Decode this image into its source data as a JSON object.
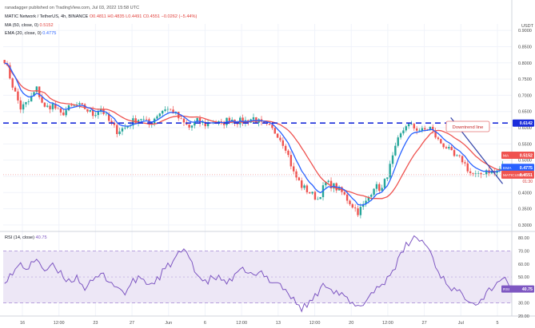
{
  "header": {
    "publisher": "ranadagger published on TradingView.com, Jul 03, 2022 15:58 UTC",
    "symbol_line_prefix": "MATIC Network / TetherUS, 4h, BINANCE",
    "ohlc": "O0.4811 H0.4835 L0.4491 C0.4551 −0.0262 (−5.44%)",
    "ma_label": "MA (50, close, 0)",
    "ma_value": "0.5152",
    "ema_label": "EMA (20, close, 0)",
    "ema_value": "0.4775",
    "rsi_label": "RSI (14, close)",
    "rsi_value": "40.75"
  },
  "colors": {
    "up": "#26a69a",
    "down": "#ef5350",
    "ma": "#ef5350",
    "ema": "#2962ff",
    "rsi_line": "#7e57c2",
    "rsi_band": "#ede7f6",
    "support_line": "#1a2cdb",
    "trend_line": "#3949ab"
  },
  "chart_data": [
    {
      "type": "candlestick",
      "currency": "USDT",
      "ylim": [
        0.28,
        0.92
      ],
      "x_ticks": [
        "16",
        "12:00",
        "23",
        "27",
        "Jun",
        "6",
        "12:00",
        "13",
        "12:00",
        "20",
        "12:00",
        "27",
        "Jul",
        "5"
      ],
      "y_ticks": [
        "0.9000",
        "0.8500",
        "0.8000",
        "0.7500",
        "0.7000",
        "0.6500",
        "0.6000",
        "0.5500",
        "0.5000",
        "0.4500",
        "0.4000",
        "0.3500",
        "0.3000"
      ],
      "price_keypoints": [
        0.81,
        0.73,
        0.66,
        0.68,
        0.72,
        0.66,
        0.67,
        0.64,
        0.66,
        0.67,
        0.66,
        0.64,
        0.66,
        0.62,
        0.59,
        0.6,
        0.62,
        0.63,
        0.61,
        0.64,
        0.66,
        0.65,
        0.62,
        0.6,
        0.62,
        0.61,
        0.62,
        0.61,
        0.63,
        0.62,
        0.62,
        0.63,
        0.61,
        0.6,
        0.58,
        0.54,
        0.46,
        0.42,
        0.4,
        0.38,
        0.43,
        0.42,
        0.4,
        0.37,
        0.34,
        0.37,
        0.42,
        0.41,
        0.48,
        0.56,
        0.61,
        0.6,
        0.59,
        0.6,
        0.56,
        0.54,
        0.51,
        0.5,
        0.46,
        0.45,
        0.47,
        0.46,
        0.48,
        0.4551
      ],
      "support_level": 0.6142,
      "support_label": "0.6142",
      "annotation": "Downtrend line",
      "downtrend_line": [
        [
          0.88,
          0.631
        ],
        [
          0.982,
          0.427
        ]
      ],
      "ma_label": "MA",
      "ma_value": "0.5152",
      "ema_label": "EMA",
      "ema_value": "0.4775",
      "price_label": "MATICUSDT",
      "price_value": "0.4551",
      "countdown": "01:30"
    },
    {
      "type": "line",
      "series_name": "RSI",
      "ylim": [
        20,
        85
      ],
      "y_ticks": [
        "80.00",
        "70.00",
        "60.00",
        "50.00",
        "40.00",
        "30.00",
        "20.00"
      ],
      "band": [
        30,
        70
      ],
      "midline": 50,
      "values": [
        48,
        52,
        60,
        56,
        65,
        55,
        58,
        52,
        47,
        50,
        42,
        46,
        52,
        48,
        42,
        38,
        46,
        50,
        44,
        48,
        56,
        62,
        70,
        66,
        52,
        45,
        50,
        48,
        46,
        52,
        56,
        50,
        53,
        48,
        46,
        40,
        32,
        26,
        30,
        38,
        45,
        40,
        36,
        30,
        26,
        32,
        40,
        44,
        52,
        62,
        74,
        80,
        78,
        70,
        54,
        46,
        40,
        36,
        33,
        30,
        38,
        44,
        50,
        40.75
      ],
      "value_label": "RSI",
      "value": "40.75"
    }
  ]
}
